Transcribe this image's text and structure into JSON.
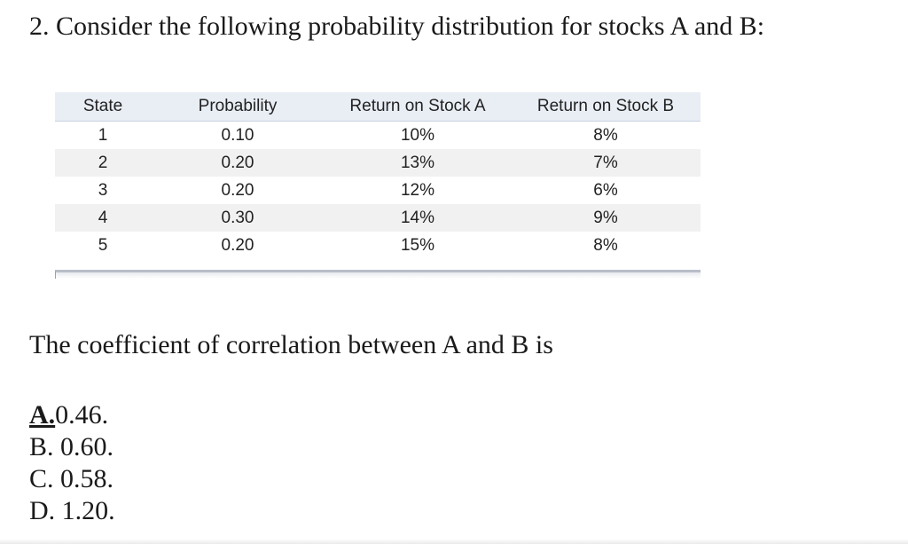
{
  "question": {
    "text": "2. Consider the following probability distribution for stocks A and B:"
  },
  "table": {
    "headers": {
      "state": "State",
      "probability": "Probability",
      "return_a": "Return on Stock A",
      "return_b": "Return on Stock B"
    },
    "rows": [
      {
        "state": "1",
        "probability": "0.10",
        "return_a": "10%",
        "return_b": "8%"
      },
      {
        "state": "2",
        "probability": "0.20",
        "return_a": "13%",
        "return_b": "7%"
      },
      {
        "state": "3",
        "probability": "0.20",
        "return_a": "12%",
        "return_b": "6%"
      },
      {
        "state": "4",
        "probability": "0.30",
        "return_a": "14%",
        "return_b": "9%"
      },
      {
        "state": "5",
        "probability": "0.20",
        "return_a": "15%",
        "return_b": "8%"
      }
    ]
  },
  "prompt": {
    "text": "The coefficient of correlation between A and B is"
  },
  "options": [
    {
      "letter": "A.",
      "value": "0.46.",
      "marked": true
    },
    {
      "letter": "B.",
      "value": "0.60.",
      "marked": false
    },
    {
      "letter": "C.",
      "value": "0.58.",
      "marked": false
    },
    {
      "letter": "D.",
      "value": "1.20.",
      "marked": false
    }
  ]
}
